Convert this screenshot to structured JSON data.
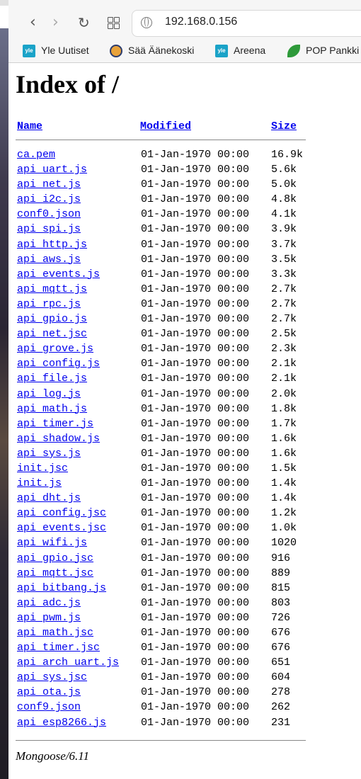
{
  "browser": {
    "address": "192.168.0.156",
    "bookmarks": [
      {
        "label": "Yle Uutiset",
        "icon": "yle-icon"
      },
      {
        "label": "Sää Äänekoski",
        "icon": "weather-icon"
      },
      {
        "label": "Areena",
        "icon": "yle-icon"
      },
      {
        "label": "POP Pankki",
        "icon": "leaf-icon"
      }
    ]
  },
  "page": {
    "title": "Index of /",
    "headers": {
      "name": "Name",
      "modified": "Modified",
      "size": "Size"
    },
    "footer": "Mongoose/6.11"
  },
  "files": [
    [
      "ca.pem",
      "01-Jan-1970 00:00",
      "16.9k"
    ],
    [
      "api_uart.js",
      "01-Jan-1970 00:00",
      "5.6k"
    ],
    [
      "api_net.js",
      "01-Jan-1970 00:00",
      "5.0k"
    ],
    [
      "api_i2c.js",
      "01-Jan-1970 00:00",
      "4.8k"
    ],
    [
      "conf0.json",
      "01-Jan-1970 00:00",
      "4.1k"
    ],
    [
      "api_spi.js",
      "01-Jan-1970 00:00",
      "3.9k"
    ],
    [
      "api_http.js",
      "01-Jan-1970 00:00",
      "3.7k"
    ],
    [
      "api_aws.js",
      "01-Jan-1970 00:00",
      "3.5k"
    ],
    [
      "api_events.js",
      "01-Jan-1970 00:00",
      "3.3k"
    ],
    [
      "api_mqtt.js",
      "01-Jan-1970 00:00",
      "2.7k"
    ],
    [
      "api_rpc.js",
      "01-Jan-1970 00:00",
      "2.7k"
    ],
    [
      "api_gpio.js",
      "01-Jan-1970 00:00",
      "2.7k"
    ],
    [
      "api_net.jsc",
      "01-Jan-1970 00:00",
      "2.5k"
    ],
    [
      "api_grove.js",
      "01-Jan-1970 00:00",
      "2.3k"
    ],
    [
      "api_config.js",
      "01-Jan-1970 00:00",
      "2.1k"
    ],
    [
      "api_file.js",
      "01-Jan-1970 00:00",
      "2.1k"
    ],
    [
      "api_log.js",
      "01-Jan-1970 00:00",
      "2.0k"
    ],
    [
      "api_math.js",
      "01-Jan-1970 00:00",
      "1.8k"
    ],
    [
      "api_timer.js",
      "01-Jan-1970 00:00",
      "1.7k"
    ],
    [
      "api_shadow.js",
      "01-Jan-1970 00:00",
      "1.6k"
    ],
    [
      "api_sys.js",
      "01-Jan-1970 00:00",
      "1.6k"
    ],
    [
      "init.jsc",
      "01-Jan-1970 00:00",
      "1.5k"
    ],
    [
      "init.js",
      "01-Jan-1970 00:00",
      "1.4k"
    ],
    [
      "api_dht.js",
      "01-Jan-1970 00:00",
      "1.4k"
    ],
    [
      "api_config.jsc",
      "01-Jan-1970 00:00",
      "1.2k"
    ],
    [
      "api_events.jsc",
      "01-Jan-1970 00:00",
      "1.0k"
    ],
    [
      "api_wifi.js",
      "01-Jan-1970 00:00",
      "1020"
    ],
    [
      "api_gpio.jsc",
      "01-Jan-1970 00:00",
      "916"
    ],
    [
      "api_mqtt.jsc",
      "01-Jan-1970 00:00",
      "889"
    ],
    [
      "api_bitbang.js",
      "01-Jan-1970 00:00",
      "815"
    ],
    [
      "api_adc.js",
      "01-Jan-1970 00:00",
      "803"
    ],
    [
      "api_pwm.js",
      "01-Jan-1970 00:00",
      "726"
    ],
    [
      "api_math.jsc",
      "01-Jan-1970 00:00",
      "676"
    ],
    [
      "api_timer.jsc",
      "01-Jan-1970 00:00",
      "676"
    ],
    [
      "api_arch_uart.js",
      "01-Jan-1970 00:00",
      "651"
    ],
    [
      "api_sys.jsc",
      "01-Jan-1970 00:00",
      "604"
    ],
    [
      "api_ota.js",
      "01-Jan-1970 00:00",
      "278"
    ],
    [
      "conf9.json",
      "01-Jan-1970 00:00",
      "262"
    ],
    [
      "api_esp8266.js",
      "01-Jan-1970 00:00",
      "231"
    ]
  ]
}
